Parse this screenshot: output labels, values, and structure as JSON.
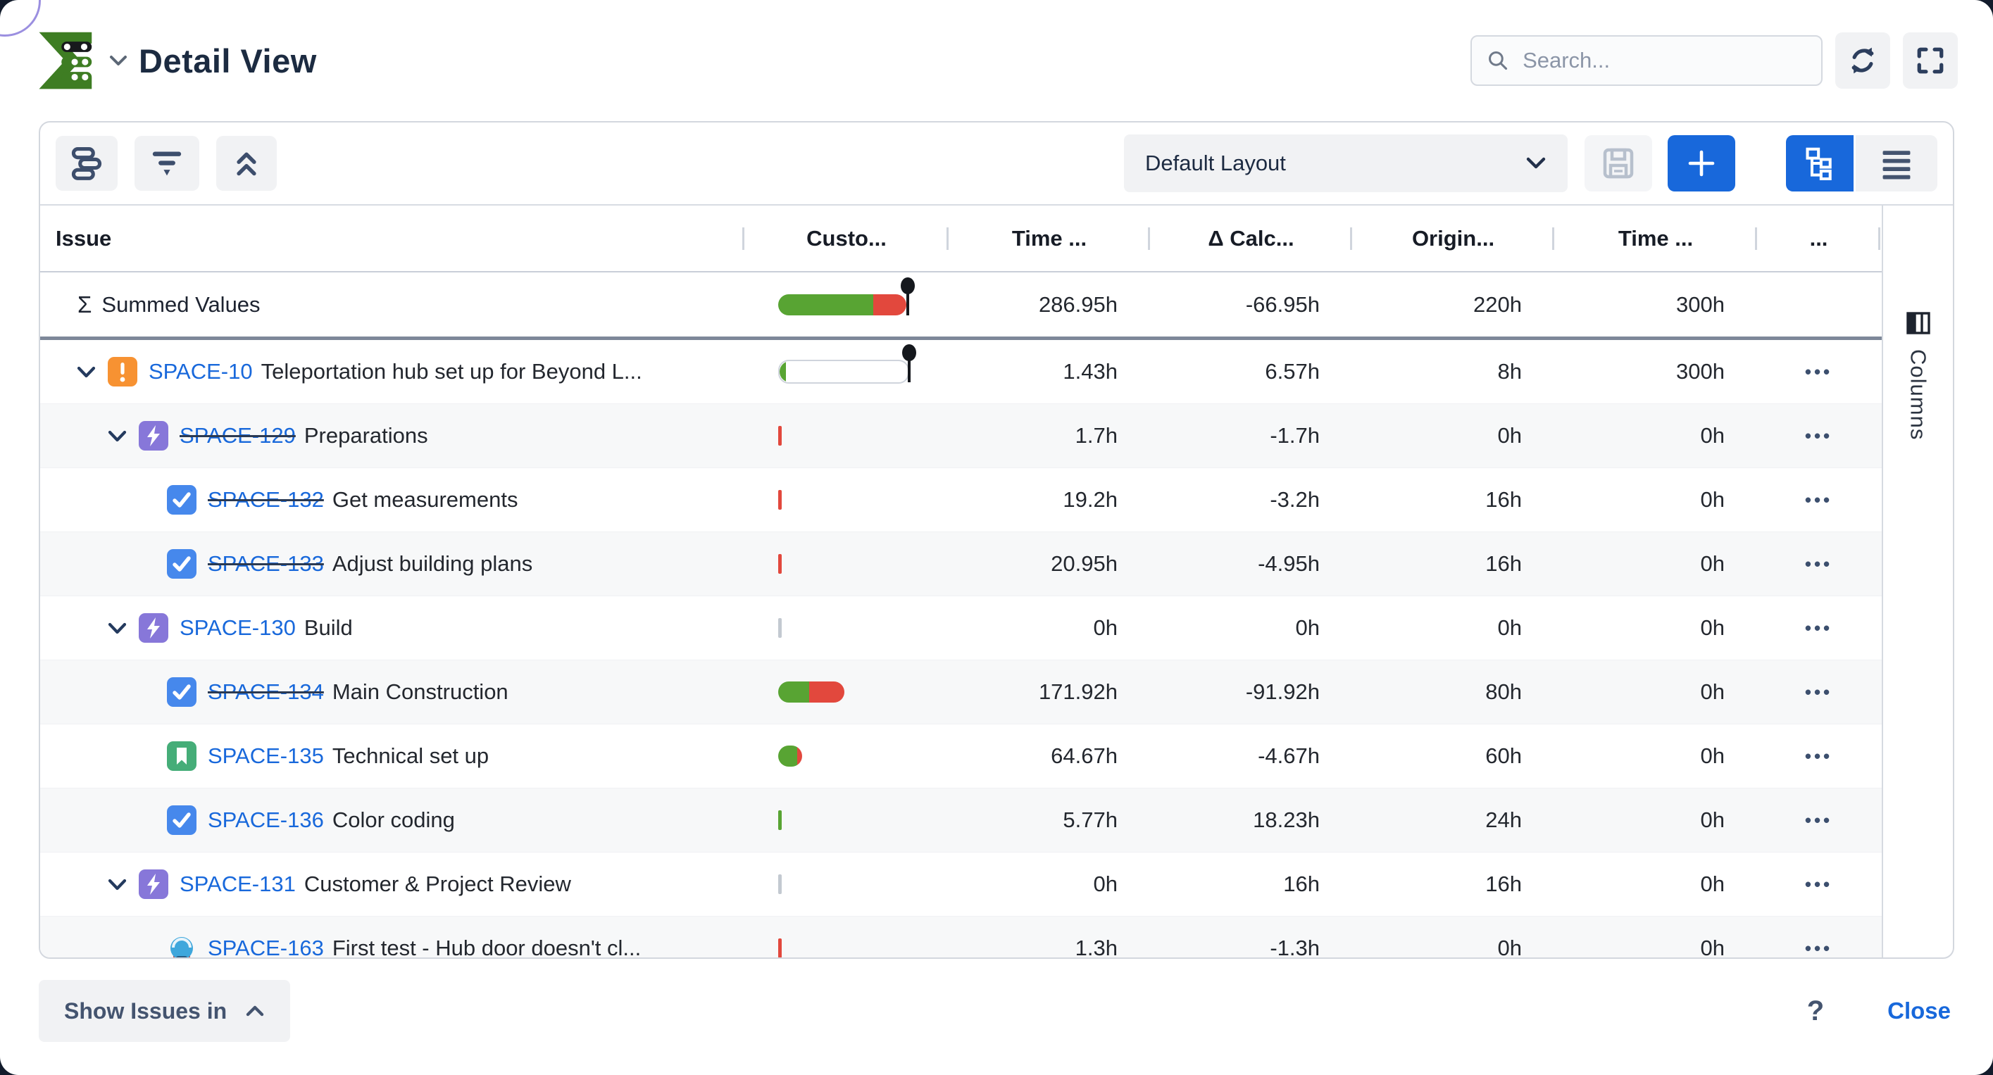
{
  "app": {
    "title": "Detail View"
  },
  "search": {
    "placeholder": "Search..."
  },
  "toolbar": {
    "layout_value": "Default Layout"
  },
  "table": {
    "columns": [
      "Issue",
      "Custo...",
      "Time ...",
      "Δ Calc...",
      "Origin...",
      "Time ...",
      "..."
    ],
    "row_menu": "•••",
    "summary": {
      "sigma": "Σ",
      "label": "Summed Values",
      "values": [
        "286.95h",
        "-66.95h",
        "220h",
        "300h"
      ],
      "progress": {
        "kind": "bar",
        "segments": [
          [
            "green",
            74
          ],
          [
            "red",
            26
          ]
        ],
        "pin": true
      }
    },
    "rows": [
      {
        "level": 0,
        "expand": true,
        "icon": "alert",
        "key": "SPACE-10",
        "struck": false,
        "summary": "Teleportation hub set up for Beyond L...",
        "progress": {
          "kind": "bar",
          "outline": true,
          "segments": [
            [
              "green",
              5
            ]
          ],
          "pin": true
        },
        "values": [
          "1.43h",
          "6.57h",
          "8h",
          "300h"
        ]
      },
      {
        "level": 1,
        "expand": true,
        "icon": "bolt",
        "key": "SPACE-129",
        "struck": true,
        "summary": "Preparations",
        "progress": {
          "kind": "tick",
          "color": "red"
        },
        "values": [
          "1.7h",
          "-1.7h",
          "0h",
          "0h"
        ]
      },
      {
        "level": 2,
        "expand": false,
        "icon": "check",
        "key": "SPACE-132",
        "struck": true,
        "summary": "Get measurements",
        "progress": {
          "kind": "tick",
          "color": "red"
        },
        "values": [
          "19.2h",
          "-3.2h",
          "16h",
          "0h"
        ]
      },
      {
        "level": 2,
        "expand": false,
        "icon": "check",
        "key": "SPACE-133",
        "struck": true,
        "summary": "Adjust building plans",
        "progress": {
          "kind": "tick",
          "color": "red"
        },
        "values": [
          "20.95h",
          "-4.95h",
          "16h",
          "0h"
        ]
      },
      {
        "level": 1,
        "expand": true,
        "icon": "bolt",
        "key": "SPACE-130",
        "struck": false,
        "summary": "Build",
        "progress": {
          "kind": "tick",
          "color": "gray"
        },
        "values": [
          "0h",
          "0h",
          "0h",
          "0h"
        ]
      },
      {
        "level": 2,
        "expand": false,
        "icon": "check",
        "key": "SPACE-134",
        "struck": true,
        "summary": "Main Construction",
        "progress": {
          "kind": "pill",
          "segments": [
            [
              "green",
              47
            ],
            [
              "red",
              53
            ]
          ]
        },
        "values": [
          "171.92h",
          "-91.92h",
          "80h",
          "0h"
        ]
      },
      {
        "level": 2,
        "expand": false,
        "icon": "story",
        "key": "SPACE-135",
        "struck": false,
        "summary": "Technical set up",
        "progress": {
          "kind": "dot",
          "segments": [
            [
              "green",
              80
            ],
            [
              "red",
              20
            ]
          ]
        },
        "values": [
          "64.67h",
          "-4.67h",
          "60h",
          "0h"
        ]
      },
      {
        "level": 2,
        "expand": false,
        "icon": "check",
        "key": "SPACE-136",
        "struck": false,
        "summary": "Color coding",
        "progress": {
          "kind": "tick",
          "color": "green"
        },
        "values": [
          "5.77h",
          "18.23h",
          "24h",
          "0h"
        ]
      },
      {
        "level": 1,
        "expand": true,
        "icon": "bolt",
        "key": "SPACE-131",
        "struck": false,
        "summary": "Customer & Project Review",
        "progress": {
          "kind": "tick",
          "color": "gray"
        },
        "values": [
          "0h",
          "16h",
          "16h",
          "0h"
        ]
      },
      {
        "level": 2,
        "expand": false,
        "icon": "custom",
        "key": "SPACE-163",
        "struck": false,
        "summary": "First test - Hub door doesn't cl...",
        "progress": {
          "kind": "tick",
          "color": "red"
        },
        "values": [
          "1.3h",
          "-1.3h",
          "0h",
          "0h"
        ]
      }
    ]
  },
  "columns_panel": {
    "label": "Columns"
  },
  "footer": {
    "show_issues": "Show Issues in",
    "help": "?",
    "close": "Close"
  },
  "colors": {
    "accent": "#1868DB",
    "green": "#58A433",
    "red": "#E2483D",
    "gray": "#C3C9D1",
    "orange": "#F79232",
    "purple": "#8777D9",
    "task_blue": "#4688EC",
    "story_green": "#45AD78"
  }
}
